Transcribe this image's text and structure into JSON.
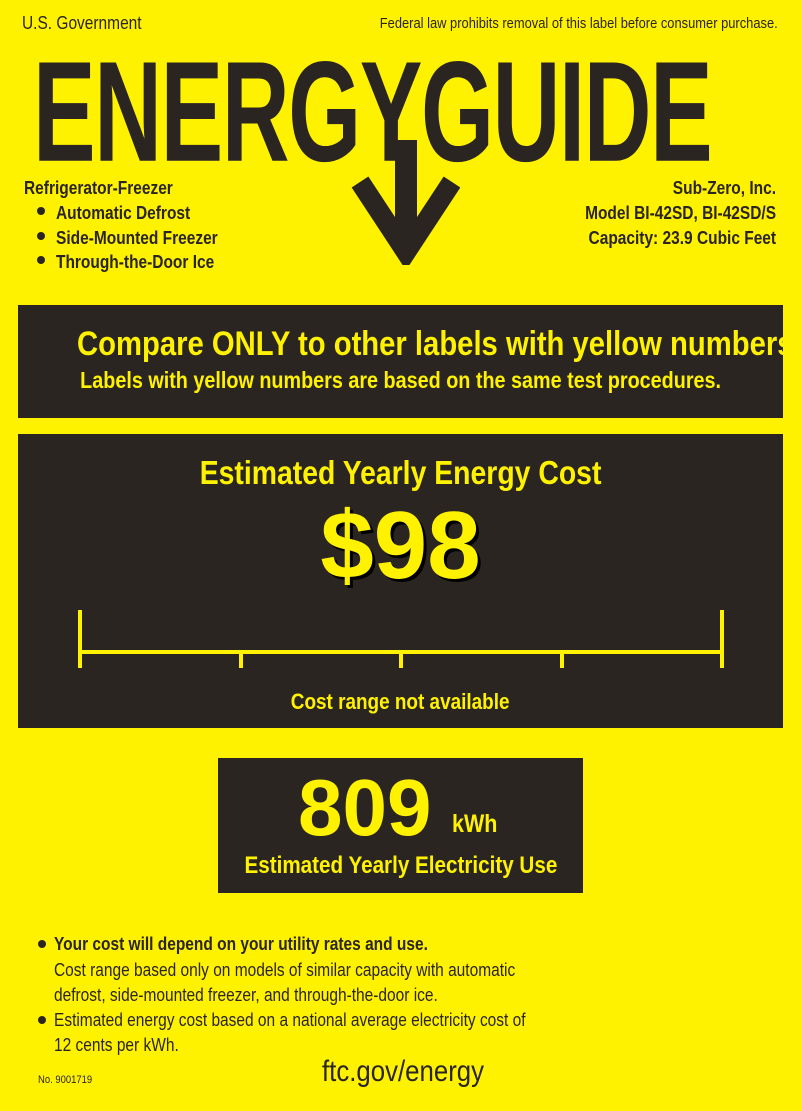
{
  "header": {
    "government": "U.S. Government",
    "notice": "Federal law prohibits removal of this label before consumer purchase.",
    "title": "ENERGYGUIDE"
  },
  "product": {
    "type": "Refrigerator-Freezer",
    "features": [
      "Automatic Defrost",
      "Side-Mounted Freezer",
      "Through-the-Door Ice"
    ],
    "manufacturer": "Sub-Zero, Inc.",
    "model": "Model BI-42SD, BI-42SD/S",
    "capacity": "Capacity: 23.9 Cubic Feet"
  },
  "compare": {
    "line1": "Compare ONLY to other labels with yellow numbers.",
    "line2": "Labels with yellow numbers are based on the same test procedures."
  },
  "cost": {
    "heading": "Estimated Yearly Energy Cost",
    "value": "$98",
    "range_note": "Cost range not available"
  },
  "electricity": {
    "value": "809",
    "unit": "kWh",
    "label": "Estimated Yearly Electricity Use"
  },
  "footer": {
    "bullet1_bold": "Your cost will depend on your utility rates and use.",
    "bullet1_line2": "Cost range based only on models of similar capacity with automatic",
    "bullet1_line3": "defrost, side-mounted freezer, and through-the-door ice.",
    "bullet2_line1": "Estimated energy cost based on a national average electricity cost of",
    "bullet2_line2": "12 cents per kWh.",
    "label_number": "No. 9001719",
    "website": "ftc.gov/energy"
  },
  "colors": {
    "background": "#fff200",
    "dark": "#2b2522",
    "numbers": "#fff200"
  }
}
